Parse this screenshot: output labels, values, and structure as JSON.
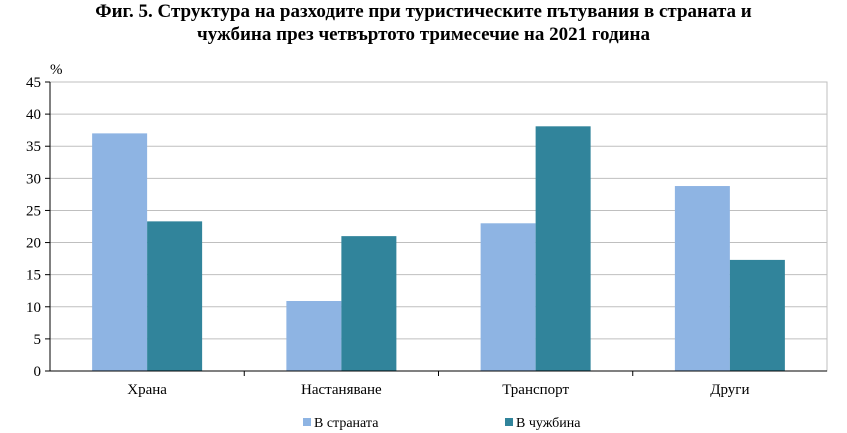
{
  "chart_data": {
    "type": "bar",
    "title_line1": "Фиг. 5. Структура на разходите при туристическите пътувания в страната и",
    "title_line2": "чужбина през четвъртото тримесечие на 2021 година",
    "ylabel": "%",
    "xlabel": "",
    "ylim": [
      0,
      45
    ],
    "yticks": [
      0,
      5,
      10,
      15,
      20,
      25,
      30,
      35,
      40,
      45
    ],
    "grid": true,
    "legend_position": "bottom",
    "categories": [
      "Храна",
      "Настаняване",
      "Транспорт",
      "Други"
    ],
    "series": [
      {
        "name": "В страната",
        "values": [
          37.0,
          10.9,
          23.0,
          28.8
        ],
        "color": "#8EB4E3"
      },
      {
        "name": "В чужбина",
        "values": [
          23.3,
          21.0,
          38.1,
          17.3
        ],
        "color": "#31849B"
      }
    ]
  }
}
